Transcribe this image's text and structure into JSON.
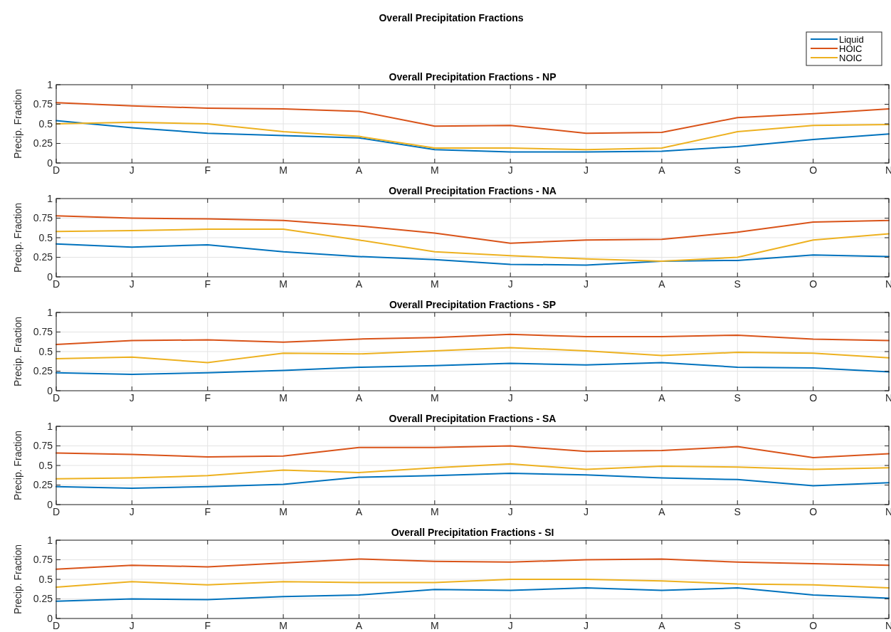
{
  "chart_data": [
    {
      "type": "line",
      "title": "Overall Precipitation Fractions - NP",
      "annotations": [
        "Overall Precipitation Fractions"
      ],
      "ylabel": "Precip. Fraction",
      "categories": [
        "D",
        "J",
        "F",
        "M",
        "A",
        "M",
        "J",
        "J",
        "A",
        "S",
        "O",
        "N"
      ],
      "ylim": [
        0,
        1
      ],
      "yticks": [
        0,
        0.25,
        0.5,
        0.75,
        1
      ],
      "grid": true,
      "legend": "top right",
      "series": [
        {
          "name": "Liquid",
          "color": "#0072bd",
          "values": [
            0.54,
            0.45,
            0.38,
            0.35,
            0.32,
            0.17,
            0.14,
            0.14,
            0.15,
            0.21,
            0.3,
            0.37
          ]
        },
        {
          "name": "HOIC",
          "color": "#d95319",
          "values": [
            0.77,
            0.73,
            0.7,
            0.69,
            0.66,
            0.47,
            0.48,
            0.38,
            0.39,
            0.58,
            0.63,
            0.69
          ]
        },
        {
          "name": "NOIC",
          "color": "#edb120",
          "values": [
            0.5,
            0.52,
            0.5,
            0.4,
            0.34,
            0.19,
            0.19,
            0.17,
            0.19,
            0.4,
            0.48,
            0.49
          ]
        }
      ]
    },
    {
      "type": "line",
      "title": "Overall Precipitation Fractions - NA",
      "ylabel": "Precip. Fraction",
      "categories": [
        "D",
        "J",
        "F",
        "M",
        "A",
        "M",
        "J",
        "J",
        "A",
        "S",
        "O",
        "N"
      ],
      "ylim": [
        0,
        1
      ],
      "yticks": [
        0,
        0.25,
        0.5,
        0.75,
        1
      ],
      "grid": true,
      "series": [
        {
          "color": "#0072bd",
          "values": [
            0.42,
            0.38,
            0.41,
            0.32,
            0.26,
            0.22,
            0.16,
            0.15,
            0.2,
            0.21,
            0.28,
            0.26
          ]
        },
        {
          "color": "#d95319",
          "values": [
            0.78,
            0.75,
            0.74,
            0.72,
            0.65,
            0.56,
            0.43,
            0.47,
            0.48,
            0.57,
            0.7,
            0.72
          ]
        },
        {
          "color": "#edb120",
          "values": [
            0.58,
            0.59,
            0.61,
            0.61,
            0.47,
            0.32,
            0.27,
            0.23,
            0.2,
            0.25,
            0.47,
            0.55
          ]
        }
      ]
    },
    {
      "type": "line",
      "title": "Overall Precipitation Fractions - SP",
      "ylabel": "Precip. Fraction",
      "categories": [
        "D",
        "J",
        "F",
        "M",
        "A",
        "M",
        "J",
        "J",
        "A",
        "S",
        "O",
        "N"
      ],
      "ylim": [
        0,
        1
      ],
      "yticks": [
        0,
        0.25,
        0.5,
        0.75,
        1
      ],
      "grid": true,
      "series": [
        {
          "color": "#0072bd",
          "values": [
            0.23,
            0.21,
            0.23,
            0.26,
            0.3,
            0.32,
            0.35,
            0.33,
            0.36,
            0.3,
            0.29,
            0.24
          ]
        },
        {
          "color": "#d95319",
          "values": [
            0.59,
            0.64,
            0.65,
            0.62,
            0.66,
            0.68,
            0.72,
            0.69,
            0.69,
            0.71,
            0.66,
            0.64
          ]
        },
        {
          "color": "#edb120",
          "values": [
            0.41,
            0.43,
            0.36,
            0.48,
            0.47,
            0.51,
            0.55,
            0.51,
            0.45,
            0.49,
            0.48,
            0.42
          ]
        }
      ]
    },
    {
      "type": "line",
      "title": "Overall Precipitation Fractions - SA",
      "ylabel": "Precip. Fraction",
      "categories": [
        "D",
        "J",
        "F",
        "M",
        "A",
        "M",
        "J",
        "J",
        "A",
        "S",
        "O",
        "N"
      ],
      "ylim": [
        0,
        1
      ],
      "yticks": [
        0,
        0.25,
        0.5,
        0.75,
        1
      ],
      "grid": true,
      "series": [
        {
          "color": "#0072bd",
          "values": [
            0.23,
            0.21,
            0.23,
            0.26,
            0.35,
            0.37,
            0.4,
            0.38,
            0.34,
            0.32,
            0.24,
            0.28
          ]
        },
        {
          "color": "#d95319",
          "values": [
            0.66,
            0.64,
            0.61,
            0.62,
            0.73,
            0.73,
            0.75,
            0.68,
            0.69,
            0.74,
            0.6,
            0.65
          ]
        },
        {
          "color": "#edb120",
          "values": [
            0.33,
            0.34,
            0.37,
            0.44,
            0.41,
            0.47,
            0.52,
            0.45,
            0.49,
            0.48,
            0.45,
            0.47
          ]
        }
      ]
    },
    {
      "type": "line",
      "title": "Overall Precipitation Fractions - SI",
      "ylabel": "Precip. Fraction",
      "categories": [
        "D",
        "J",
        "F",
        "M",
        "A",
        "M",
        "J",
        "J",
        "A",
        "S",
        "O",
        "N"
      ],
      "ylim": [
        0,
        1
      ],
      "yticks": [
        0,
        0.25,
        0.5,
        0.75,
        1
      ],
      "grid": true,
      "series": [
        {
          "color": "#0072bd",
          "values": [
            0.22,
            0.25,
            0.24,
            0.28,
            0.3,
            0.37,
            0.36,
            0.39,
            0.36,
            0.39,
            0.3,
            0.26
          ]
        },
        {
          "color": "#d95319",
          "values": [
            0.63,
            0.68,
            0.66,
            0.71,
            0.76,
            0.73,
            0.72,
            0.75,
            0.76,
            0.72,
            0.7,
            0.68
          ]
        },
        {
          "color": "#edb120",
          "values": [
            0.4,
            0.47,
            0.43,
            0.47,
            0.46,
            0.46,
            0.5,
            0.5,
            0.48,
            0.44,
            0.43,
            0.39
          ]
        }
      ]
    }
  ]
}
